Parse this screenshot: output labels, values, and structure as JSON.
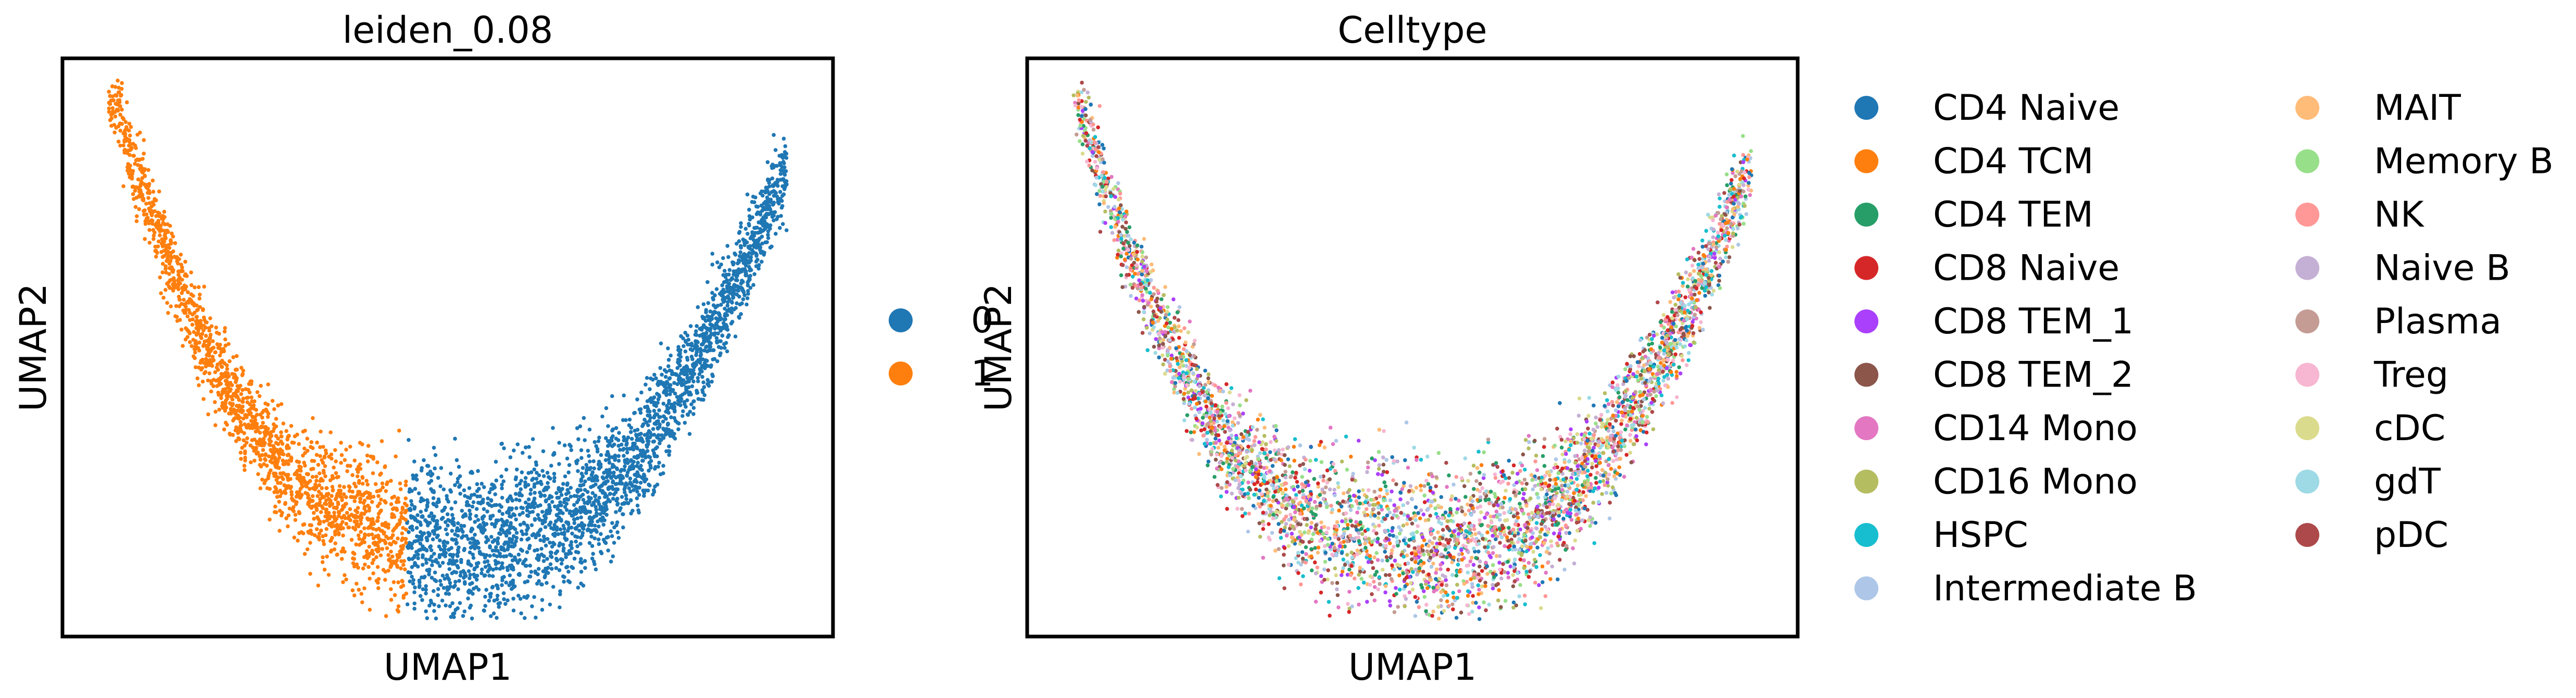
{
  "chart_data": [
    {
      "type": "scatter",
      "title": "leiden_0.08",
      "xlabel": "UMAP1",
      "ylabel": "UMAP2",
      "grid": false,
      "ticks": false,
      "legend": {
        "placement": "right",
        "entries": [
          {
            "label": "0",
            "color": "#1f77b4"
          },
          {
            "label": "1",
            "color": "#ff7f0e"
          }
        ]
      },
      "series": [
        {
          "name": "0",
          "color": "#1f77b4",
          "region": "right branch of the curve"
        },
        {
          "name": "1",
          "color": "#ff7f0e",
          "region": "left branch of the curve"
        }
      ]
    },
    {
      "type": "scatter",
      "title": "Celltype",
      "xlabel": "UMAP1",
      "ylabel": "UMAP2",
      "grid": false,
      "ticks": false,
      "legend": {
        "placement": "right",
        "columns": 2,
        "entries": [
          {
            "label": "CD4 Naive",
            "color": "#1f77b4"
          },
          {
            "label": "CD4 TCM",
            "color": "#ff7f0e"
          },
          {
            "label": "CD4 TEM",
            "color": "#279e68"
          },
          {
            "label": "CD8 Naive",
            "color": "#d62728"
          },
          {
            "label": "CD8 TEM_1",
            "color": "#aa40fc"
          },
          {
            "label": "CD8 TEM_2",
            "color": "#8c564b"
          },
          {
            "label": "CD14 Mono",
            "color": "#e377c2"
          },
          {
            "label": "CD16 Mono",
            "color": "#b5bd61"
          },
          {
            "label": "HSPC",
            "color": "#17becf"
          },
          {
            "label": "Intermediate B",
            "color": "#aec7e8"
          },
          {
            "label": "MAIT",
            "color": "#ffbb78"
          },
          {
            "label": "Memory B",
            "color": "#98df8a"
          },
          {
            "label": "NK",
            "color": "#ff9896"
          },
          {
            "label": "Naive B",
            "color": "#c5b0d5"
          },
          {
            "label": "Plasma",
            "color": "#c49c94"
          },
          {
            "label": "Treg",
            "color": "#f7b6d2"
          },
          {
            "label": "cDC",
            "color": "#dbdb8d"
          },
          {
            "label": "gdT",
            "color": "#9edae5"
          },
          {
            "label": "pDC",
            "color": "#ad494a"
          }
        ]
      }
    }
  ]
}
